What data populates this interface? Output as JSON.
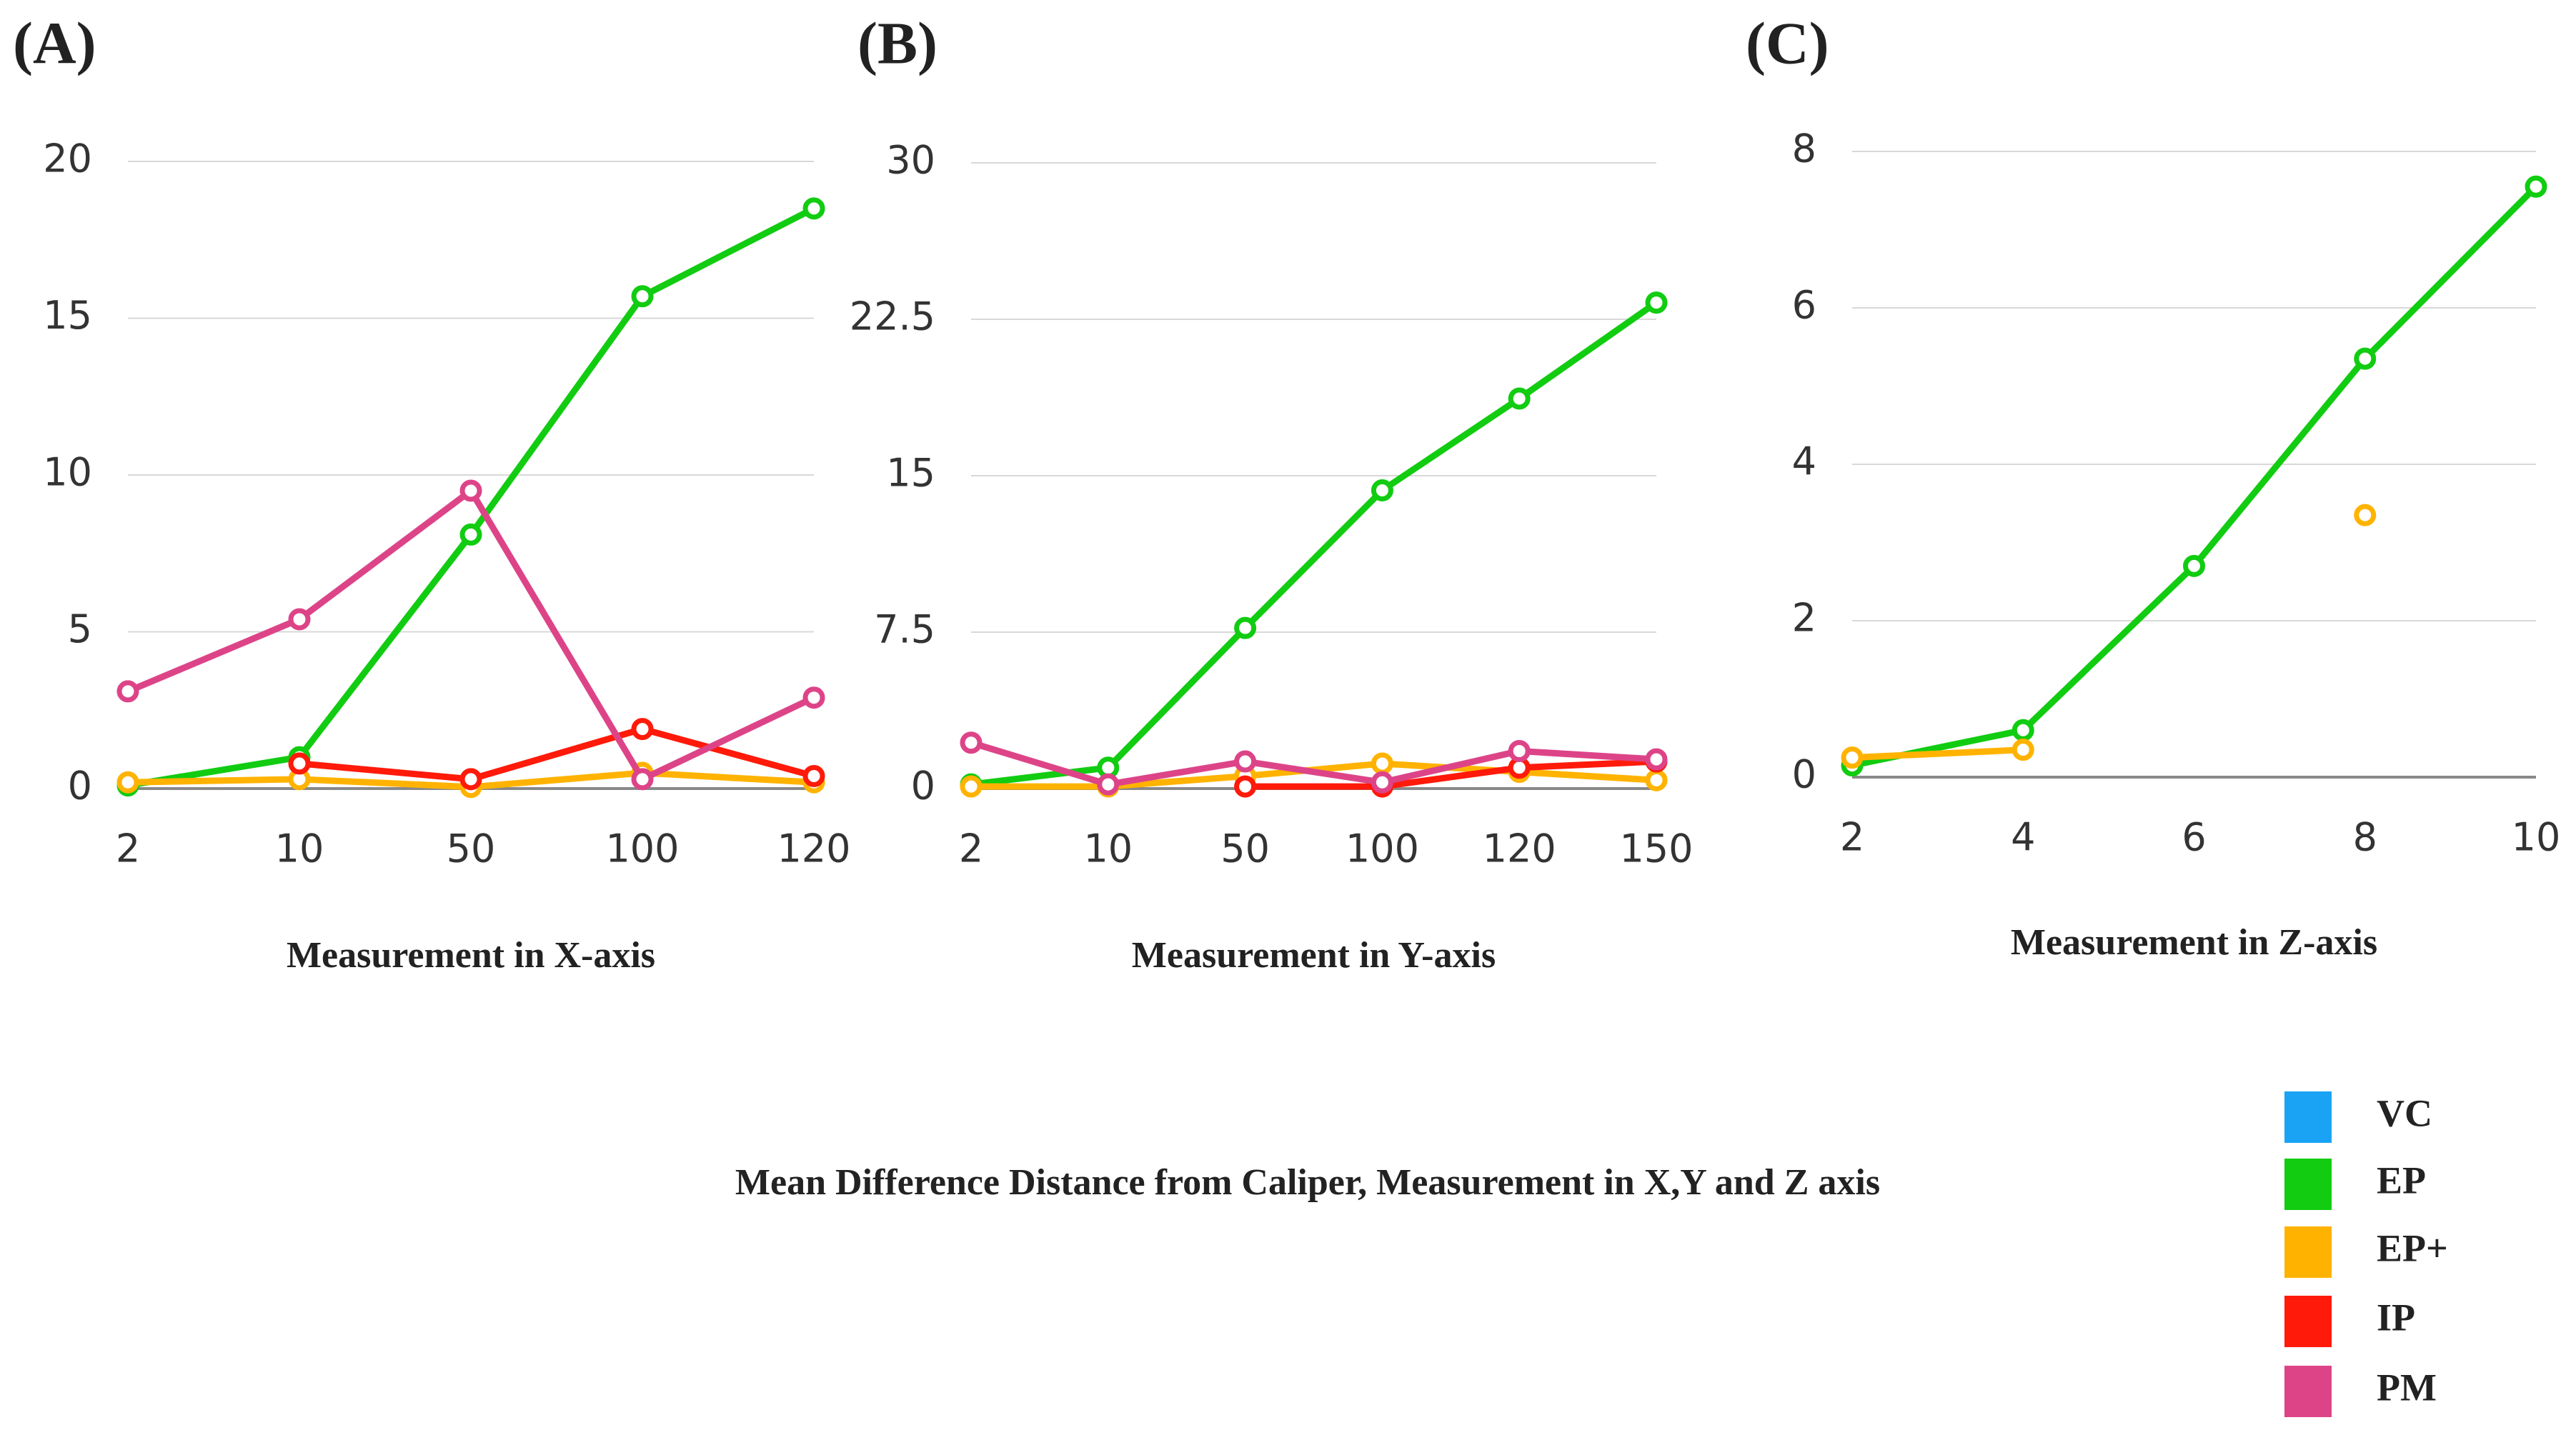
{
  "title": "Mean Difference Distance from Caliper, Measurement in X,Y and Z axis",
  "chart_data": [
    {
      "type": "line",
      "panel": "(A)",
      "x_label": "Measurement in X-axis",
      "categories": [
        "2",
        "10",
        "50",
        "100",
        "120"
      ],
      "ylim": [
        0,
        20
      ],
      "yticks": [
        0,
        5,
        10,
        15,
        20
      ],
      "grid": true,
      "series": [
        {
          "name": "VC",
          "color": "#1aa3f5",
          "values": [
            null,
            null,
            null,
            null,
            null
          ]
        },
        {
          "name": "EP",
          "color": "#11cc11",
          "values": [
            0.1,
            1.0,
            8.1,
            15.7,
            18.5
          ]
        },
        {
          "name": "EP+",
          "color": "#ffb300",
          "values": [
            0.2,
            0.3,
            0.05,
            0.5,
            0.2
          ]
        },
        {
          "name": "IP",
          "color": "#ff1a0a",
          "values": [
            null,
            0.8,
            0.3,
            1.9,
            0.4
          ]
        },
        {
          "name": "PM",
          "color": "#dd4488",
          "values": [
            3.1,
            5.4,
            9.5,
            0.3,
            2.9
          ]
        }
      ]
    },
    {
      "type": "line",
      "panel": "(B)",
      "x_label": "Measurement in Y-axis",
      "categories": [
        "2",
        "10",
        "50",
        "100",
        "120",
        "150"
      ],
      "ylim": [
        0,
        30
      ],
      "yticks": [
        0,
        7.5,
        15,
        22.5,
        30
      ],
      "grid": true,
      "series": [
        {
          "name": "VC",
          "color": "#1aa3f5",
          "values": [
            null,
            null,
            null,
            null,
            null,
            null
          ]
        },
        {
          "name": "EP",
          "color": "#11cc11",
          "values": [
            0.2,
            1.0,
            7.7,
            14.3,
            18.7,
            23.3
          ]
        },
        {
          "name": "EP+",
          "color": "#ffb300",
          "values": [
            0.1,
            0.1,
            0.6,
            1.2,
            0.8,
            0.4
          ]
        },
        {
          "name": "IP",
          "color": "#ff1a0a",
          "values": [
            null,
            null,
            0.1,
            0.1,
            1.0,
            1.3
          ]
        },
        {
          "name": "PM",
          "color": "#dd4488",
          "values": [
            2.2,
            0.2,
            1.3,
            0.3,
            1.8,
            1.4
          ]
        }
      ]
    },
    {
      "type": "line",
      "panel": "(C)",
      "x_label": "Measurement in Z-axis",
      "categories": [
        "2",
        "4",
        "6",
        "8",
        "10"
      ],
      "ylim": [
        0,
        8
      ],
      "yticks": [
        0,
        2,
        4,
        6,
        8
      ],
      "grid": true,
      "series": [
        {
          "name": "VC",
          "color": "#1aa3f5",
          "values": [
            null,
            null,
            null,
            null,
            null
          ]
        },
        {
          "name": "EP",
          "color": "#11cc11",
          "values": [
            0.15,
            0.6,
            2.7,
            5.35,
            7.55
          ]
        },
        {
          "name": "EP+",
          "color": "#ffb300",
          "values": [
            0.25,
            0.35,
            null,
            3.35,
            null
          ]
        },
        {
          "name": "IP",
          "color": "#ff1a0a",
          "values": [
            null,
            null,
            null,
            null,
            null
          ]
        },
        {
          "name": "PM",
          "color": "#dd4488",
          "values": [
            null,
            null,
            null,
            null,
            null
          ]
        }
      ]
    }
  ]
}
